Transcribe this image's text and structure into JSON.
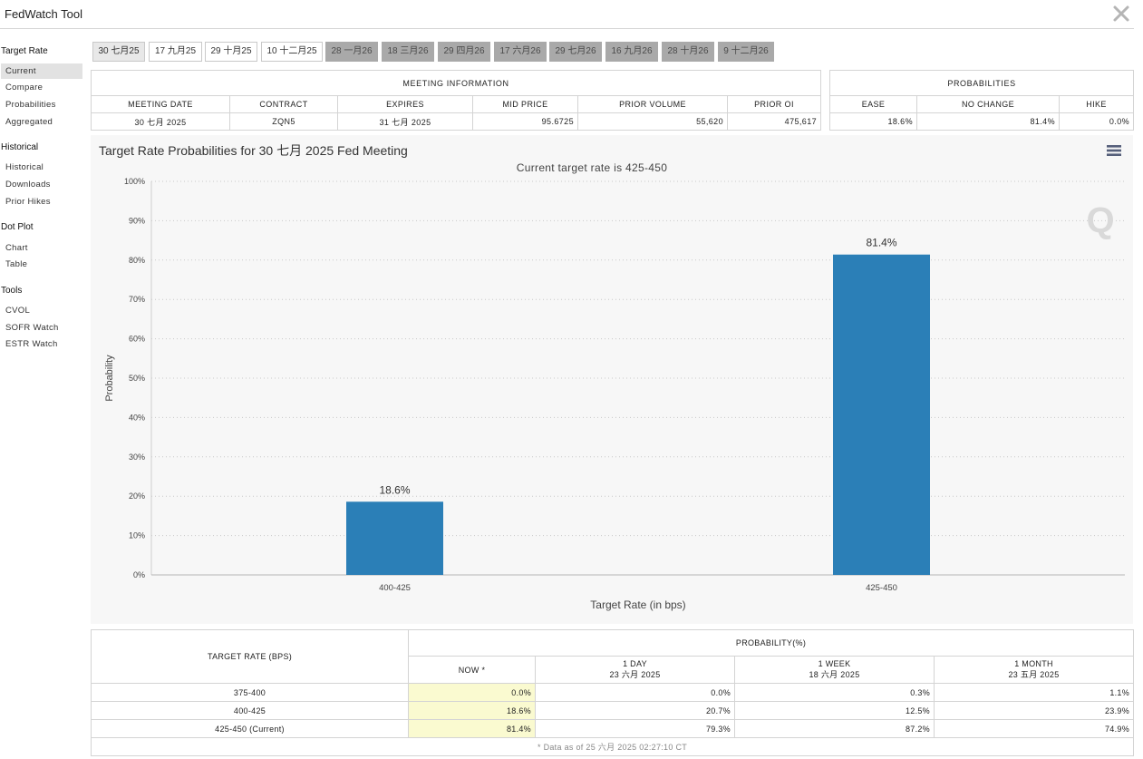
{
  "window": {
    "title": "FedWatch Tool"
  },
  "sidebar": {
    "groups": [
      {
        "label": "Target Rate",
        "items": [
          "Current",
          "Compare",
          "Probabilities",
          "Aggregated"
        ]
      },
      {
        "label": "Historical",
        "items": [
          "Historical",
          "Downloads",
          "Prior Hikes"
        ]
      },
      {
        "label": "Dot Plot",
        "items": [
          "Chart",
          "Table"
        ]
      },
      {
        "label": "Tools",
        "items": [
          "CVOL",
          "SOFR Watch",
          "ESTR Watch"
        ]
      }
    ],
    "active_item": "Current"
  },
  "meeting_tabs": [
    "30 七月25",
    "17 九月25",
    "29 十月25",
    "10 十二月25",
    "28 一月26",
    "18 三月26",
    "29 四月26",
    "17 六月26",
    "29 七月26",
    "16 九月26",
    "28 十月26",
    "9 十二月26"
  ],
  "meeting_info": {
    "section_title": "MEETING INFORMATION",
    "headers": [
      "MEETING DATE",
      "CONTRACT",
      "EXPIRES",
      "MID PRICE",
      "PRIOR VOLUME",
      "PRIOR OI"
    ],
    "values": [
      "30 七月 2025",
      "ZQN5",
      "31 七月 2025",
      "95.6725",
      "55,620",
      "475,617"
    ]
  },
  "probabilities": {
    "section_title": "PROBABILITIES",
    "headers": [
      "EASE",
      "NO CHANGE",
      "HIKE"
    ],
    "values": [
      "18.6%",
      "81.4%",
      "0.0%"
    ]
  },
  "chart_title": "Target Rate Probabilities for 30 七月 2025 Fed Meeting",
  "chart_data": {
    "type": "bar",
    "subtitle": "Current target rate is 425-450",
    "categories": [
      "400-425",
      "425-450"
    ],
    "values": [
      18.6,
      81.4
    ],
    "data_labels": [
      "18.6%",
      "81.4%"
    ],
    "xlabel": "Target Rate (in bps)",
    "ylabel": "Probability",
    "ylim": [
      0,
      100
    ],
    "yticks": [
      "0%",
      "10%",
      "20%",
      "30%",
      "40%",
      "50%",
      "60%",
      "70%",
      "80%",
      "90%",
      "100%"
    ],
    "grid": true,
    "bar_color": "#2b7fb7",
    "watermark": "Q"
  },
  "rates_table": {
    "header_main": "TARGET RATE (BPS)",
    "header_prob": "PROBABILITY(%)",
    "columns": [
      {
        "label": "NOW *",
        "date": ""
      },
      {
        "label": "1 DAY",
        "date": "23 六月 2025"
      },
      {
        "label": "1 WEEK",
        "date": "18 六月 2025"
      },
      {
        "label": "1 MONTH",
        "date": "23 五月 2025"
      }
    ],
    "rows": [
      {
        "rate": "375-400",
        "values": [
          "0.0%",
          "0.0%",
          "0.3%",
          "1.1%"
        ]
      },
      {
        "rate": "400-425",
        "values": [
          "18.6%",
          "20.7%",
          "12.5%",
          "23.9%"
        ]
      },
      {
        "rate": "425-450 (Current)",
        "values": [
          "81.4%",
          "79.3%",
          "87.2%",
          "74.9%"
        ]
      }
    ],
    "footnote": "* Data as of 25 六月 2025 02:27:10 CT"
  },
  "colors": {
    "accent_bar": "#2b7fb7",
    "now_column": "#fafad0",
    "future_tab": "#a9a9a9"
  }
}
